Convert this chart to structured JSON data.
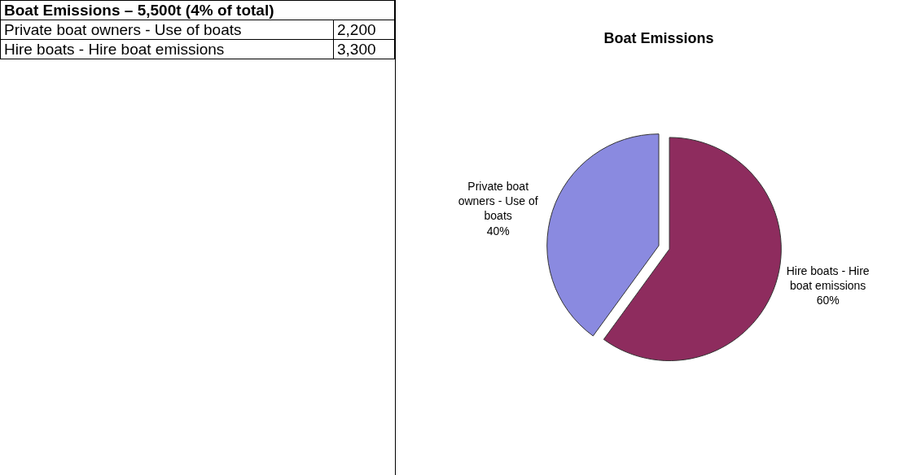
{
  "chart_data": [
    {
      "type": "other",
      "title": "Boat Emissions – 5,500t (4% of total)",
      "annotations": [
        "Private boat owners - Use of boats",
        "2,200",
        "Hire boats - Hire boat emissions",
        "3,300"
      ]
    },
    {
      "type": "pie",
      "title": "Boat Emissions",
      "categories": [
        "Private boat owners - Use of boats",
        "Hire boats - Hire boat emissions"
      ],
      "values": [
        40,
        60
      ],
      "value_labels": [
        "40%",
        "60%"
      ],
      "colors": [
        "#8a8ae0",
        "#8e2c5e"
      ],
      "legend": false
    }
  ]
}
